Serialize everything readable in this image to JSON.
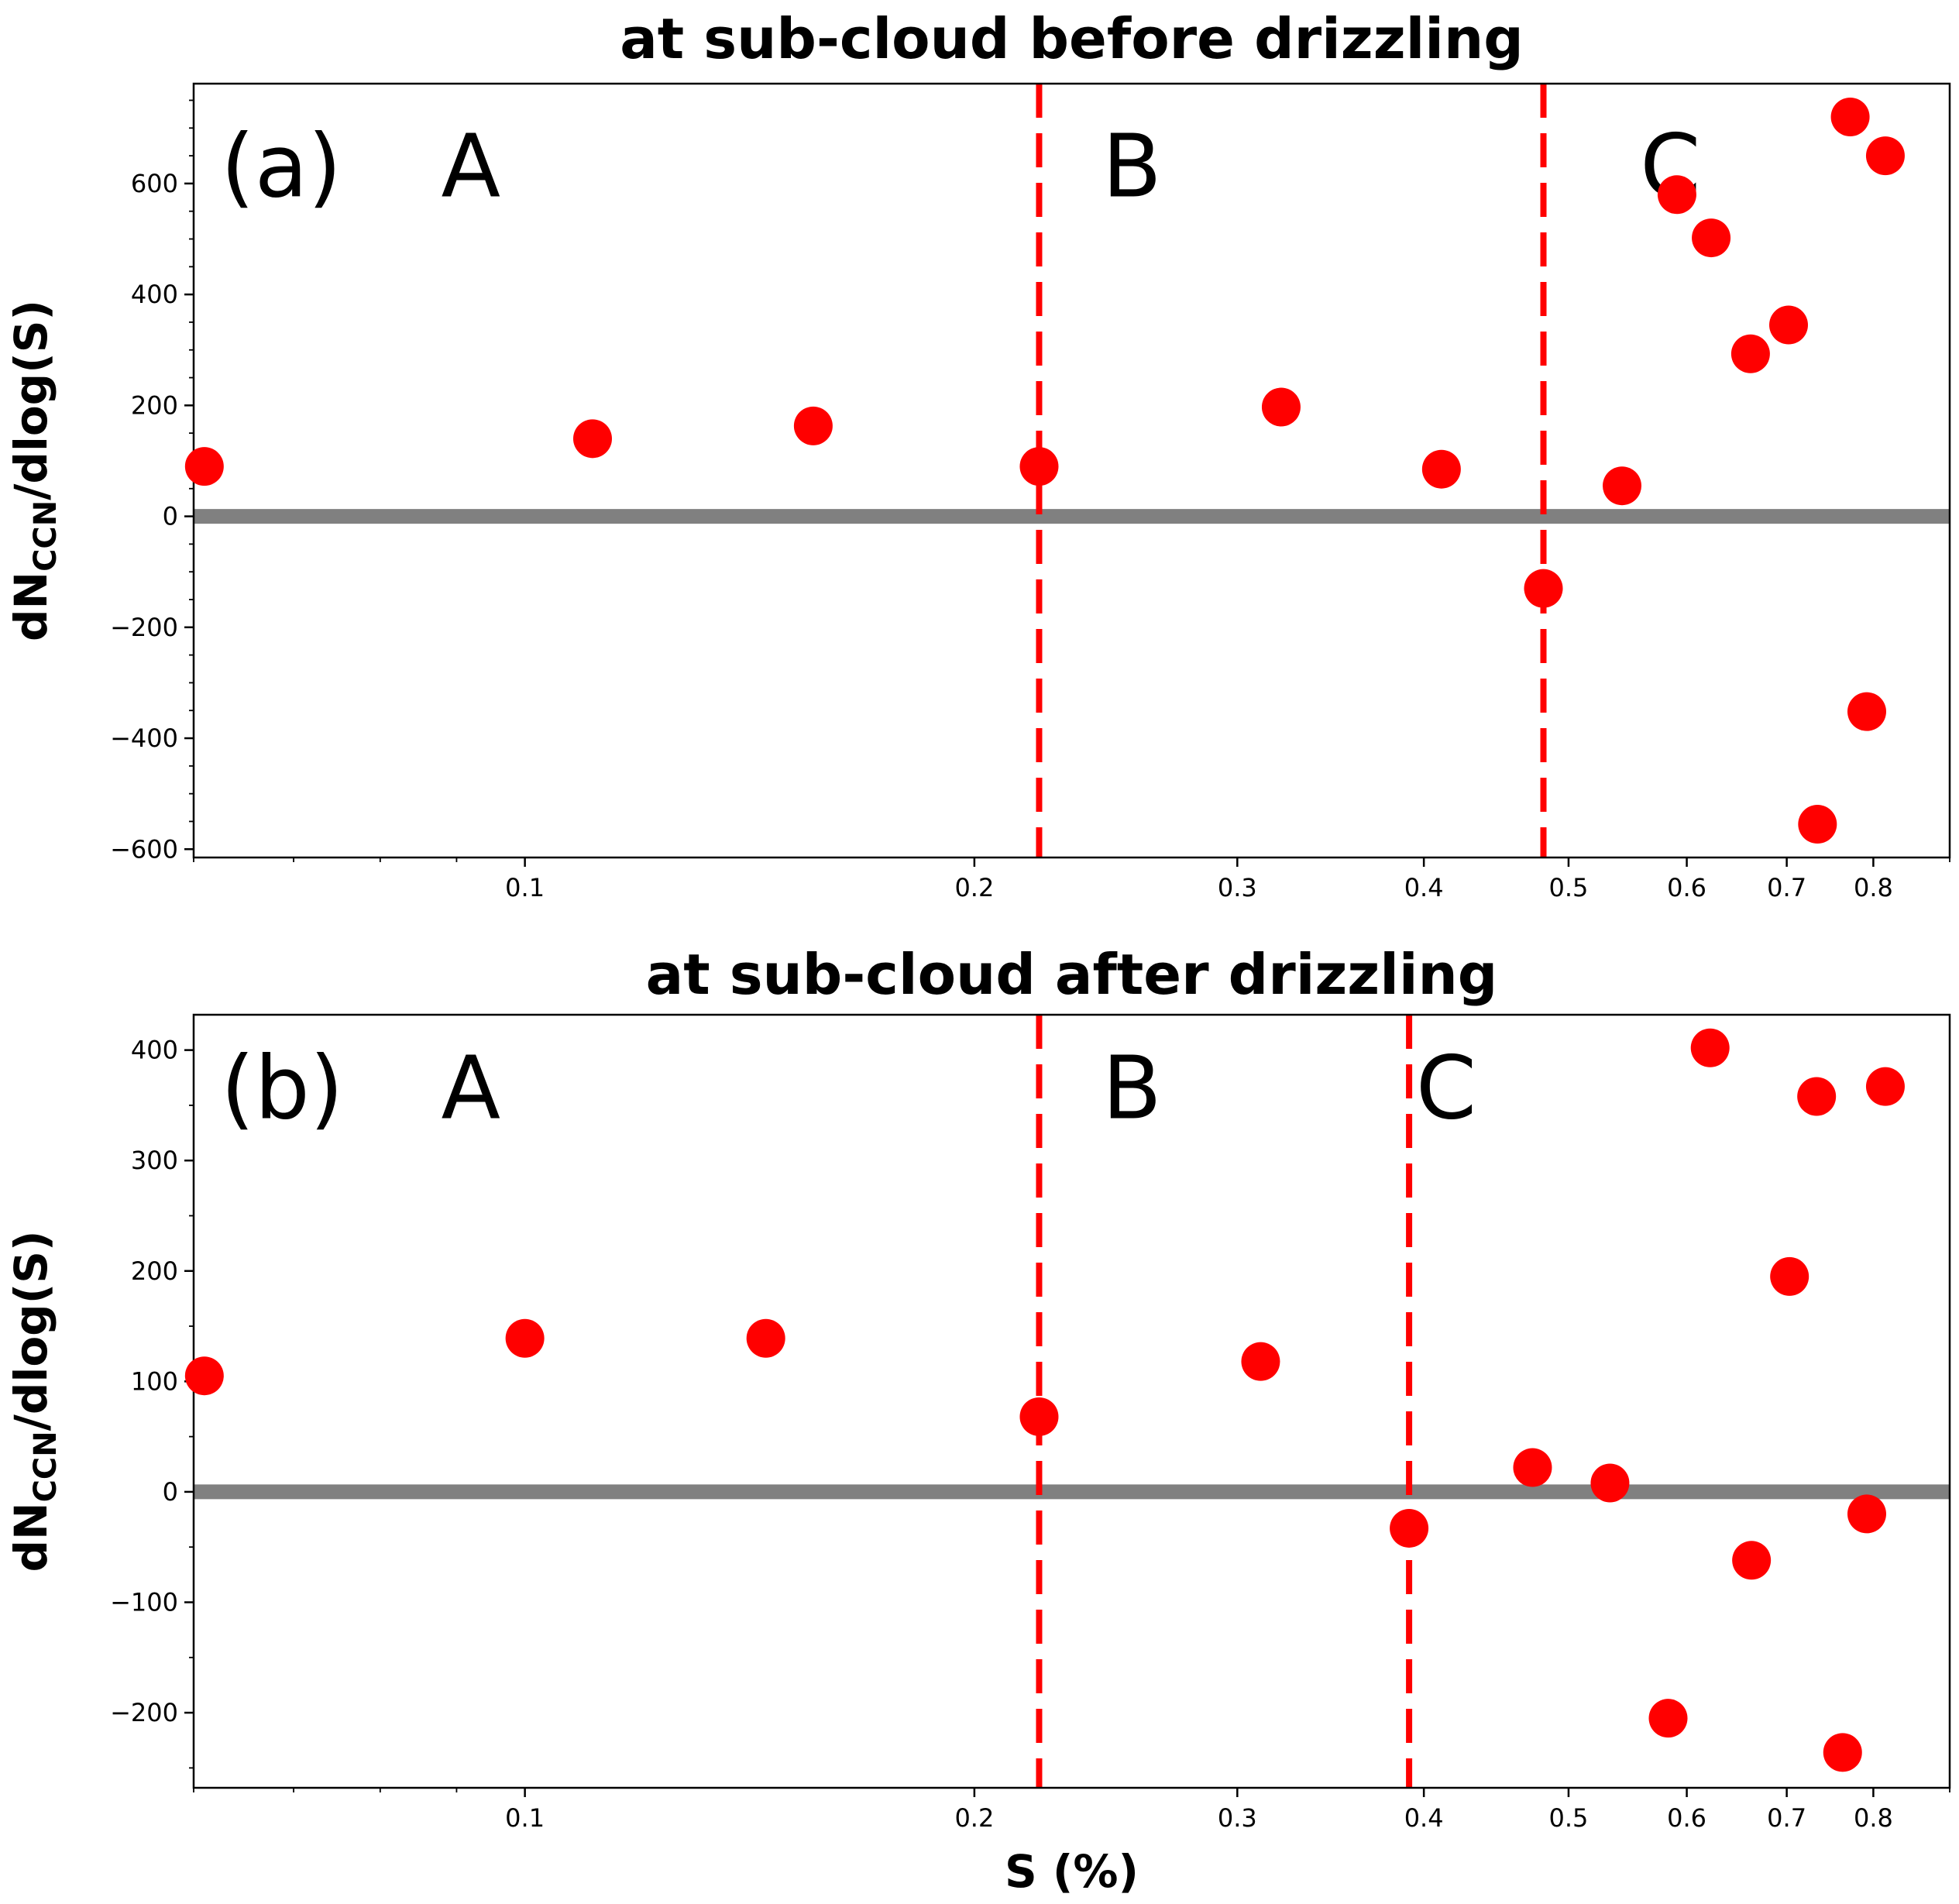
{
  "chart_data": [
    {
      "type": "scatter",
      "panel_label": "(a)",
      "title": "at sub-cloud before drizzling",
      "ylabel": "dN_CCN/dlog(S)",
      "ylabel_main": "dN",
      "ylabel_sub": "CCN",
      "ylabel_tail": "/dlog(S)",
      "xlabel": "",
      "xscale": "log",
      "xlim": [
        0.06,
        0.9
      ],
      "ylim": [
        -615,
        780
      ],
      "x_ticks": [
        0.1,
        0.2,
        0.3,
        0.4,
        0.5,
        0.6,
        0.7,
        0.8
      ],
      "x_tick_labels": [
        "0.1",
        "0.2",
        "0.3",
        "0.4",
        "0.5",
        "0.6",
        "0.7",
        "0.8"
      ],
      "y_ticks": [
        -600,
        -400,
        -200,
        0,
        200,
        400,
        600
      ],
      "y_tick_labels": [
        "−600",
        "−400",
        "−200",
        "0",
        "200",
        "400",
        "600"
      ],
      "zero_line": 0,
      "regions": [
        "A",
        "B",
        "C"
      ],
      "region_label_y": 630,
      "region_label_x": [
        0.092,
        0.255,
        0.585
      ],
      "region_boundaries": [
        0.221,
        0.481
      ],
      "series": [
        {
          "name": "dN_CCN/dlog(S)",
          "x": [
            0.061,
            0.111,
            0.156,
            0.221,
            0.321,
            0.411,
            0.481,
            0.543,
            0.591,
            0.623,
            0.662,
            0.702,
            0.734,
            0.772,
            0.792,
            0.815
          ],
          "y": [
            90,
            140,
            163,
            90,
            197,
            85,
            -130,
            55,
            580,
            502,
            293,
            345,
            -555,
            720,
            -352,
            650
          ]
        }
      ]
    },
    {
      "type": "scatter",
      "panel_label": "(b)",
      "title": "at sub-cloud after drizzling",
      "ylabel": "dN_CCN/dlog(S)",
      "ylabel_main": "dN",
      "ylabel_sub": "CCN",
      "ylabel_tail": "/dlog(S)",
      "xlabel": "S (%)",
      "xscale": "log",
      "xlim": [
        0.06,
        0.9
      ],
      "ylim": [
        -268,
        432
      ],
      "x_ticks": [
        0.1,
        0.2,
        0.3,
        0.4,
        0.5,
        0.6,
        0.7,
        0.8
      ],
      "x_tick_labels": [
        "0.1",
        "0.2",
        "0.3",
        "0.4",
        "0.5",
        "0.6",
        "0.7",
        "0.8"
      ],
      "y_ticks": [
        -200,
        -100,
        0,
        100,
        200,
        300,
        400
      ],
      "y_tick_labels": [
        "−200",
        "−100",
        "0",
        "100",
        "200",
        "300",
        "400"
      ],
      "zero_line": 0,
      "regions": [
        "A",
        "B",
        "C"
      ],
      "region_label_y": 365,
      "region_label_x": [
        0.092,
        0.255,
        0.414
      ],
      "region_boundaries": [
        0.221,
        0.391
      ],
      "series": [
        {
          "name": "dN_CCN/dlog(S)",
          "x": [
            0.061,
            0.1,
            0.145,
            0.221,
            0.311,
            0.391,
            0.473,
            0.533,
            0.583,
            0.622,
            0.663,
            0.703,
            0.733,
            0.763,
            0.792,
            0.815
          ],
          "y": [
            105,
            139,
            139,
            68,
            118,
            -33,
            22,
            8,
            -205,
            402,
            -62,
            195,
            358,
            -236,
            -20,
            367
          ]
        }
      ]
    }
  ]
}
